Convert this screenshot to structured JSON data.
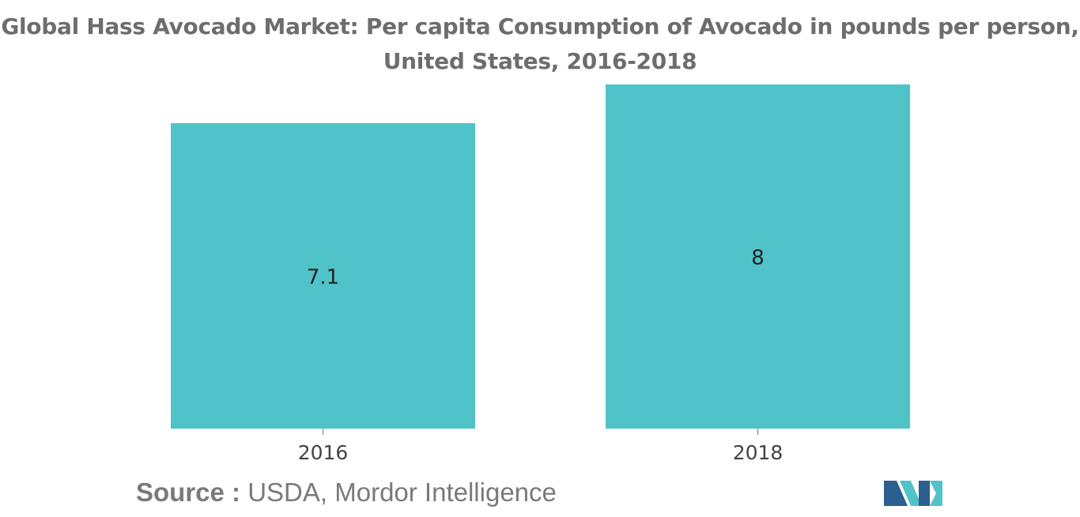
{
  "title": {
    "line1": "Global Hass Avocado Market: Per capita Consumption of Avocado in pounds per person,",
    "line2": "United States, 2016-2018"
  },
  "chart_data": {
    "type": "bar",
    "title": "Global Hass Avocado Market: Per capita Consumption of Avocado in pounds per person, United States, 2016-2018",
    "categories": [
      "2016",
      "2018"
    ],
    "values": [
      7.1,
      8
    ],
    "data_labels": [
      "7.1",
      "8"
    ],
    "xlabel": "",
    "ylabel": "",
    "ylim": [
      0,
      8
    ],
    "grid": false,
    "legend": "none",
    "bar_color": "#50c3c9"
  },
  "source": {
    "label": "Source :",
    "text": "USDA, Mordor Intelligence"
  },
  "logo": {
    "icon": "mordor-intelligence-logo-icon",
    "colors": [
      "#2a5f8f",
      "#50c3c9"
    ]
  }
}
